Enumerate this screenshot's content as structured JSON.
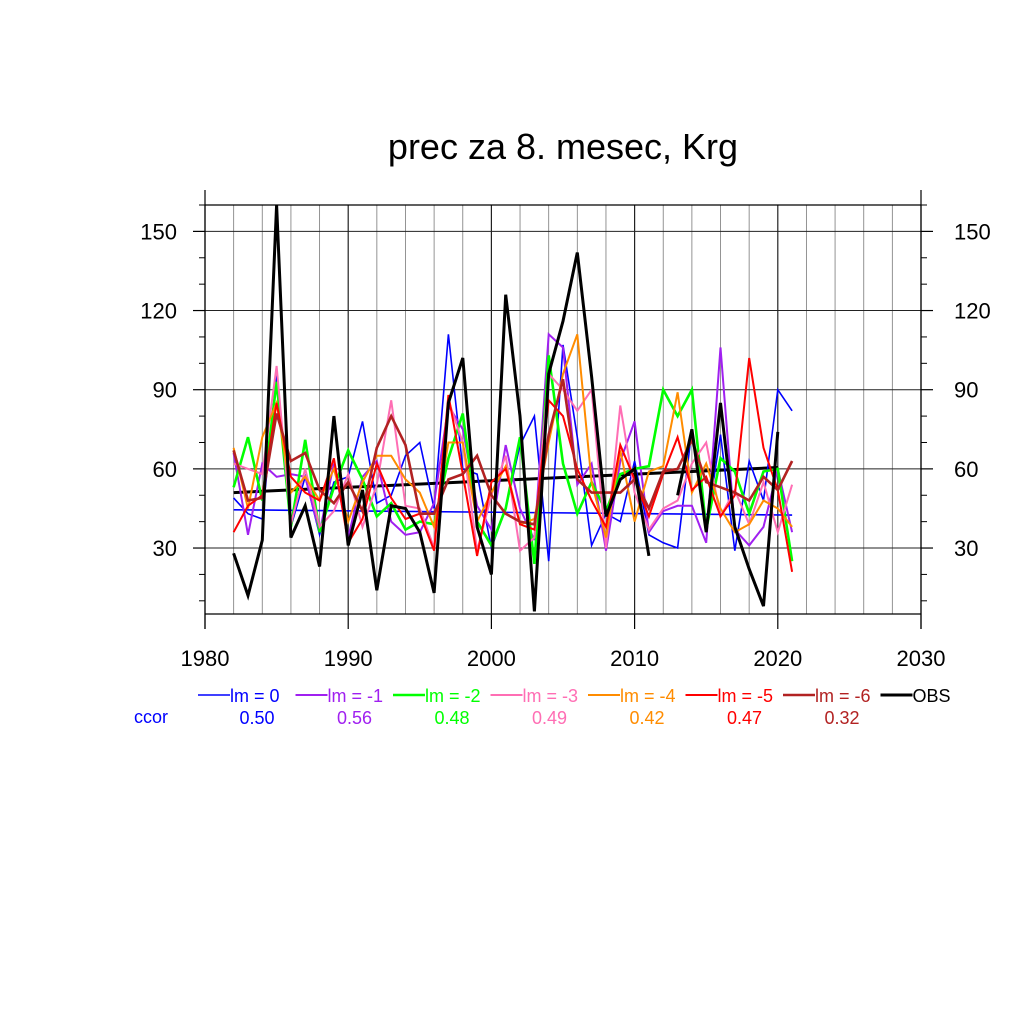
{
  "chart_data": {
    "type": "line",
    "title": "prec za 8. mesec, Krg",
    "xlim": [
      1980,
      2030
    ],
    "ylim": [
      5,
      160
    ],
    "x_ticks": [
      1980,
      1990,
      2000,
      2010,
      2020,
      2030
    ],
    "y_ticks": [
      30,
      60,
      90,
      120,
      150
    ],
    "x_tick_labels": [
      "1980",
      "1990",
      "2000",
      "2010",
      "2020",
      "2030"
    ],
    "y_tick_labels": [
      "30",
      "60",
      "90",
      "120",
      "150"
    ],
    "grid": true,
    "legend_position": "bottom",
    "x": [
      1982,
      1983,
      1984,
      1985,
      1986,
      1987,
      1988,
      1989,
      1990,
      1991,
      1992,
      1993,
      1994,
      1995,
      1996,
      1997,
      1998,
      1999,
      2000,
      2001,
      2002,
      2003,
      2004,
      2005,
      2006,
      2007,
      2008,
      2009,
      2010,
      2011,
      2012,
      2013,
      2014,
      2015,
      2016,
      2017,
      2018,
      2019,
      2020,
      2021
    ],
    "series": [
      {
        "name": "lm = 0",
        "color": "#0000ff",
        "width": 1.6,
        "values": [
          49,
          43,
          41,
          96,
          38,
          57,
          35,
          55,
          57,
          78,
          47,
          50,
          65,
          70,
          45,
          111,
          60,
          58,
          30,
          45,
          69,
          80,
          25,
          107,
          72,
          31,
          43,
          40,
          63,
          35,
          32,
          30,
          75,
          37,
          73,
          29,
          63,
          48,
          90,
          82
        ]
      },
      {
        "name": "lm = -1",
        "color": "#a020f0",
        "width": 2,
        "values": [
          66,
          35,
          62,
          57,
          58,
          57,
          36,
          62,
          34,
          57,
          63,
          40,
          35,
          36,
          47,
          84,
          75,
          46,
          37,
          69,
          45,
          33,
          111,
          106,
          54,
          62,
          29,
          63,
          78,
          36,
          44,
          46,
          46,
          32,
          106,
          37,
          31,
          38,
          60,
          36
        ]
      },
      {
        "name": "lm = -2",
        "color": "#00ff00",
        "width": 2.6,
        "values": [
          53,
          72,
          48,
          93,
          38,
          71,
          36,
          53,
          67,
          56,
          42,
          47,
          37,
          40,
          39,
          64,
          81,
          40,
          31,
          45,
          72,
          24,
          103,
          62,
          43,
          55,
          44,
          58,
          60,
          61,
          90,
          80,
          90,
          37,
          64,
          59,
          43,
          59,
          60,
          25
        ]
      },
      {
        "name": "lm = -3",
        "color": "#ff6eb4",
        "width": 2,
        "values": [
          62,
          60,
          58,
          99,
          39,
          60,
          38,
          44,
          58,
          38,
          54,
          86,
          46,
          45,
          30,
          86,
          70,
          29,
          50,
          65,
          29,
          34,
          96,
          90,
          82,
          90,
          30,
          84,
          51,
          37,
          45,
          48,
          62,
          70,
          42,
          52,
          39,
          55,
          36,
          54
        ]
      },
      {
        "name": "lm = -4",
        "color": "#ff8c00",
        "width": 2,
        "values": [
          68,
          45,
          72,
          85,
          51,
          57,
          48,
          60,
          40,
          55,
          65,
          65,
          56,
          51,
          38,
          70,
          70,
          40,
          51,
          61,
          39,
          41,
          70,
          96,
          111,
          55,
          34,
          67,
          40,
          59,
          61,
          89,
          51,
          62,
          45,
          36,
          39,
          48,
          45,
          38
        ]
      },
      {
        "name": "lm = -5",
        "color": "#ff0000",
        "width": 2,
        "values": [
          36,
          46,
          50,
          85,
          57,
          51,
          48,
          64,
          32,
          41,
          62,
          49,
          41,
          43,
          29,
          88,
          58,
          27,
          55,
          60,
          39,
          37,
          86,
          80,
          60,
          48,
          38,
          69,
          56,
          42,
          58,
          72,
          52,
          57,
          42,
          50,
          102,
          68,
          52,
          21
        ]
      },
      {
        "name": "lm = -6",
        "color": "#b22222",
        "width": 2.6,
        "values": [
          67,
          48,
          49,
          81,
          63,
          66,
          52,
          47,
          55,
          44,
          68,
          80,
          69,
          43,
          43,
          56,
          58,
          65,
          50,
          43,
          40,
          39,
          73,
          94,
          56,
          51,
          51,
          51,
          56,
          45,
          59,
          60,
          71,
          55,
          53,
          51,
          48,
          57,
          52,
          63
        ]
      },
      {
        "name": "OBS",
        "color": "#000000",
        "width": 3,
        "values": [
          28,
          12,
          33,
          160,
          34,
          46,
          23,
          80,
          31,
          52,
          14,
          46,
          45,
          36,
          13,
          85,
          102,
          38,
          20,
          126,
          80,
          6,
          96,
          116,
          142,
          95,
          42,
          56,
          60,
          27,
          null,
          50,
          75,
          36,
          85,
          38,
          22,
          8,
          74,
          null
        ]
      }
    ],
    "trend_lines": [
      {
        "series": "lm = 0",
        "color": "#0000ff",
        "x": [
          1982,
          2021
        ],
        "y": [
          44.5,
          42.5
        ]
      },
      {
        "series": "OBS",
        "color": "#000000",
        "x": [
          1982,
          2020
        ],
        "y": [
          51,
          60.5
        ]
      }
    ],
    "ccor": {
      "label": "ccor",
      "values": [
        "0.50",
        "0.56",
        "0.48",
        "0.49",
        "0.42",
        "0.47",
        "0.32"
      ]
    }
  }
}
